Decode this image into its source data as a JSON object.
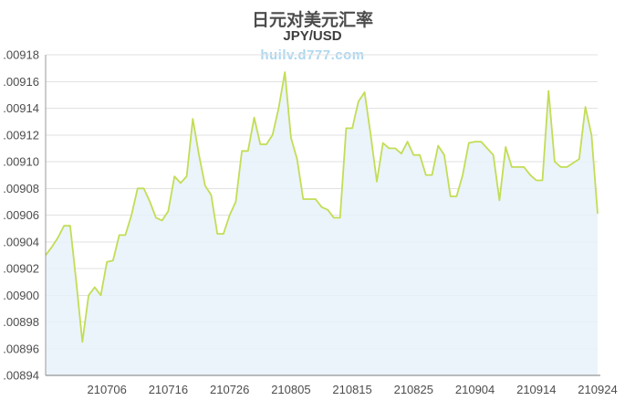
{
  "chart_data": {
    "type": "area",
    "title": "日元对美元汇率",
    "subtitle": "JPY/USD",
    "watermark": "huilv.d777.com",
    "legend": "none",
    "grid": "horizontal",
    "y_axis": {
      "min": 0.00894,
      "max": 0.00918,
      "tick_step": 2e-05,
      "ticks": [
        ".00918",
        ".00916",
        ".00914",
        ".00912",
        ".00910",
        ".00908",
        ".00906",
        ".00904",
        ".00902",
        ".00900",
        ".00898",
        ".00896",
        ".00894"
      ]
    },
    "x_axis": {
      "ticks": [
        {
          "label": "210706",
          "index": 10
        },
        {
          "label": "210716",
          "index": 20
        },
        {
          "label": "210726",
          "index": 30
        },
        {
          "label": "210805",
          "index": 40
        },
        {
          "label": "210815",
          "index": 50
        },
        {
          "label": "210825",
          "index": 60
        },
        {
          "label": "210904",
          "index": 70
        },
        {
          "label": "210914",
          "index": 80
        },
        {
          "label": "210924",
          "index": 90
        }
      ]
    },
    "series": [
      {
        "name": "JPY/USD",
        "dates": [
          "210626",
          "210627",
          "210628",
          "210629",
          "210630",
          "210701",
          "210702",
          "210703",
          "210704",
          "210705",
          "210706",
          "210707",
          "210708",
          "210709",
          "210710",
          "210711",
          "210712",
          "210713",
          "210714",
          "210715",
          "210716",
          "210717",
          "210718",
          "210719",
          "210720",
          "210721",
          "210722",
          "210723",
          "210724",
          "210725",
          "210726",
          "210727",
          "210728",
          "210729",
          "210730",
          "210731",
          "210801",
          "210802",
          "210803",
          "210804",
          "210805",
          "210806",
          "210807",
          "210808",
          "210809",
          "210810",
          "210811",
          "210812",
          "210813",
          "210814",
          "210815",
          "210816",
          "210817",
          "210818",
          "210819",
          "210820",
          "210821",
          "210822",
          "210823",
          "210824",
          "210825",
          "210826",
          "210827",
          "210828",
          "210829",
          "210830",
          "210831",
          "210901",
          "210902",
          "210903",
          "210904",
          "210905",
          "210906",
          "210907",
          "210908",
          "210909",
          "210910",
          "210911",
          "210912",
          "210913",
          "210914",
          "210915",
          "210916",
          "210917",
          "210918",
          "210919",
          "210920",
          "210921",
          "210922",
          "210923",
          "210924"
        ],
        "values": [
          0.00903,
          0.009036,
          0.009043,
          0.009052,
          0.009052,
          0.00901,
          0.008965,
          0.009,
          0.009006,
          0.009,
          0.009025,
          0.009026,
          0.009045,
          0.009045,
          0.00906,
          0.00908,
          0.00908,
          0.00907,
          0.009058,
          0.009056,
          0.009063,
          0.009089,
          0.009084,
          0.009089,
          0.009132,
          0.009105,
          0.009082,
          0.009075,
          0.009046,
          0.009046,
          0.00906,
          0.00907,
          0.009108,
          0.009108,
          0.009133,
          0.009113,
          0.009113,
          0.00912,
          0.00914,
          0.009167,
          0.009118,
          0.009102,
          0.009072,
          0.009072,
          0.009072,
          0.009066,
          0.009064,
          0.009058,
          0.009058,
          0.009125,
          0.009125,
          0.009145,
          0.009152,
          0.00912,
          0.009085,
          0.009114,
          0.00911,
          0.00911,
          0.009106,
          0.009115,
          0.009105,
          0.009105,
          0.00909,
          0.00909,
          0.009112,
          0.009105,
          0.009074,
          0.009074,
          0.00909,
          0.009114,
          0.009115,
          0.009115,
          0.00911,
          0.009105,
          0.009071,
          0.009111,
          0.009096,
          0.009096,
          0.009096,
          0.00909,
          0.009086,
          0.009086,
          0.009153,
          0.0091,
          0.009096,
          0.009096,
          0.009099,
          0.009102,
          0.009141,
          0.00912,
          0.009061
        ]
      }
    ],
    "colors": {
      "line": "#c2dd55",
      "fill": "#e7f1f9",
      "grid": "#e2e2e2",
      "axis_left": "#9a9a9a",
      "axis_bottom": "#7d7d7d",
      "text": "#4d4d4d",
      "watermark": "#aed7f0",
      "title": "#4c4c4c"
    }
  }
}
